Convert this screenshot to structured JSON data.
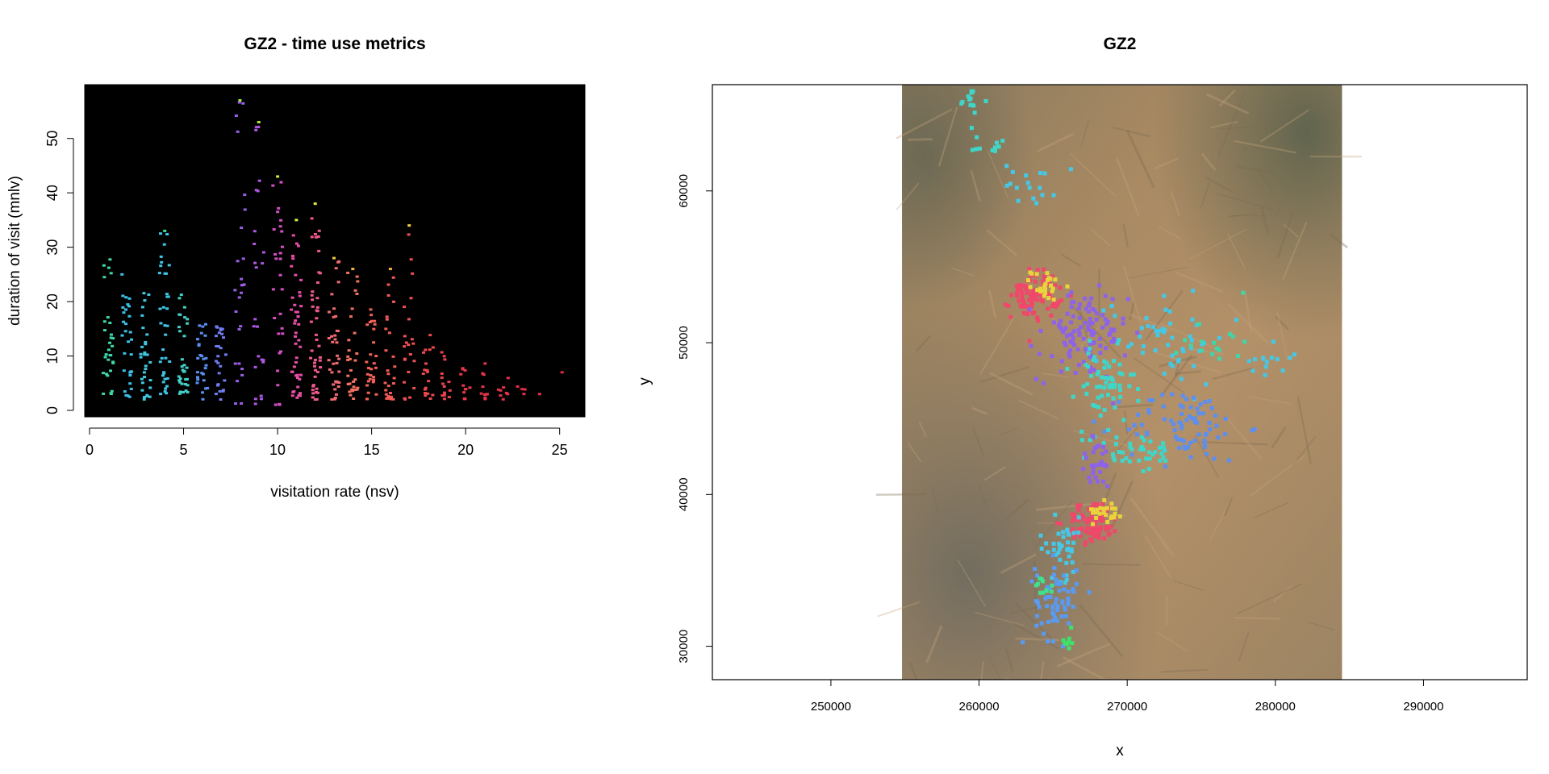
{
  "chart_data": [
    {
      "type": "scatter",
      "title": "GZ2 - time use metrics",
      "xlabel": "visitation rate (nsv)",
      "ylabel": "duration of visit (mnlv)",
      "xlim": [
        0,
        26
      ],
      "ylim": [
        0,
        59
      ],
      "x_ticks": [
        0,
        5,
        10,
        15,
        20,
        25
      ],
      "y_ticks": [
        0,
        10,
        20,
        30,
        40,
        50
      ],
      "background": "#000000",
      "grid": false,
      "legend": "none",
      "columns": [
        {
          "x": 1,
          "ymin": 3,
          "ymax": 28,
          "n": 30,
          "color": "#3fd6a9"
        },
        {
          "x": 2,
          "ymin": 2,
          "ymax": 25,
          "n": 30,
          "color": "#3cc0e8"
        },
        {
          "x": 3,
          "ymin": 2,
          "ymax": 22,
          "n": 30,
          "color": "#40c8e0"
        },
        {
          "x": 4,
          "ymin": 2,
          "ymax": 33,
          "n": 36,
          "color": "#3ec5e6"
        },
        {
          "x": 5,
          "ymin": 2,
          "ymax": 23,
          "n": 32,
          "color": "#43d0c9"
        },
        {
          "x": 6,
          "ymin": 2,
          "ymax": 17,
          "n": 26,
          "color": "#5a8ff0"
        },
        {
          "x": 7,
          "ymin": 2,
          "ymax": 16,
          "n": 26,
          "color": "#6f7df2"
        },
        {
          "x": 8,
          "ymin": 1,
          "ymax": 57,
          "n": 26,
          "color": "#9a5fe6"
        },
        {
          "x": 9,
          "ymin": 1,
          "ymax": 53,
          "n": 24,
          "color": "#b056e0"
        },
        {
          "x": 10,
          "ymin": 1,
          "ymax": 43,
          "n": 28,
          "color": "#d24fc4"
        },
        {
          "x": 11,
          "ymin": 2,
          "ymax": 35,
          "n": 44,
          "color": "#e84ea6"
        },
        {
          "x": 12,
          "ymin": 2,
          "ymax": 38,
          "n": 44,
          "color": "#ef5a8c"
        },
        {
          "x": 13,
          "ymin": 2,
          "ymax": 28,
          "n": 36,
          "color": "#f06a72"
        },
        {
          "x": 14,
          "ymin": 2,
          "ymax": 26,
          "n": 30,
          "color": "#f07060"
        },
        {
          "x": 15,
          "ymin": 2,
          "ymax": 19,
          "n": 28,
          "color": "#f06158"
        },
        {
          "x": 16,
          "ymin": 2,
          "ymax": 26,
          "n": 26,
          "color": "#f05a55"
        },
        {
          "x": 17,
          "ymin": 2,
          "ymax": 34,
          "n": 22,
          "color": "#ef4f52"
        },
        {
          "x": 18,
          "ymin": 2,
          "ymax": 15,
          "n": 18,
          "color": "#ec4850"
        },
        {
          "x": 19,
          "ymin": 2,
          "ymax": 11,
          "n": 14,
          "color": "#ea404e"
        },
        {
          "x": 20,
          "ymin": 2,
          "ymax": 8,
          "n": 12,
          "color": "#e8394c"
        },
        {
          "x": 21,
          "ymin": 2,
          "ymax": 9,
          "n": 10,
          "color": "#e6344a"
        },
        {
          "x": 22,
          "ymin": 2,
          "ymax": 6,
          "n": 8,
          "color": "#e53148"
        },
        {
          "x": 23,
          "ymin": 3,
          "ymax": 5,
          "n": 4,
          "color": "#e42e46"
        },
        {
          "x": 24,
          "ymin": 3,
          "ymax": 3,
          "n": 1,
          "color": "#e32c45"
        },
        {
          "x": 25,
          "ymin": 7,
          "ymax": 7,
          "n": 1,
          "color": "#e22a44"
        }
      ],
      "highlight_points": [
        {
          "x": 8,
          "y": 57,
          "color": "#9be23e"
        },
        {
          "x": 9,
          "y": 53,
          "color": "#b4e83c"
        },
        {
          "x": 10,
          "y": 43,
          "color": "#c8ec3a"
        },
        {
          "x": 11,
          "y": 35,
          "color": "#d9ee3a"
        },
        {
          "x": 12,
          "y": 38,
          "color": "#e6ee3a"
        },
        {
          "x": 17,
          "y": 34,
          "color": "#f2d043"
        },
        {
          "x": 16,
          "y": 26,
          "color": "#f2b040"
        },
        {
          "x": 13,
          "y": 28,
          "color": "#f2c53e"
        },
        {
          "x": 14,
          "y": 26,
          "color": "#f2b83e"
        },
        {
          "x": 4,
          "y": 33,
          "color": "#3fe08e"
        }
      ]
    },
    {
      "type": "scatter",
      "title": "GZ2",
      "xlabel": "x",
      "ylabel": "y",
      "xlim": [
        242000,
        297000
      ],
      "ylim": [
        27800,
        67000
      ],
      "x_ticks": [
        250000,
        260000,
        270000,
        280000,
        290000
      ],
      "y_ticks": [
        30000,
        40000,
        50000,
        60000
      ],
      "grid": false,
      "legend": "none",
      "raster_extent": {
        "xmin": 254800,
        "xmax": 284500,
        "ymin": 27800,
        "ymax": 67000,
        "color": "#a08664"
      },
      "clusters": [
        {
          "cx": 259500,
          "cy": 65800,
          "sx": 500,
          "sy": 600,
          "n": 14,
          "color": "#3fd6c9"
        },
        {
          "cx": 261000,
          "cy": 63000,
          "sx": 700,
          "sy": 300,
          "n": 10,
          "color": "#3fd6c9"
        },
        {
          "cx": 263500,
          "cy": 60500,
          "sx": 900,
          "sy": 700,
          "n": 18,
          "color": "#45c8e6"
        },
        {
          "cx": 263800,
          "cy": 53200,
          "sx": 800,
          "sy": 800,
          "n": 90,
          "color": "#f0476a"
        },
        {
          "cx": 264500,
          "cy": 53800,
          "sx": 500,
          "sy": 500,
          "n": 25,
          "color": "#e6d63c"
        },
        {
          "cx": 267000,
          "cy": 50500,
          "sx": 1500,
          "sy": 1500,
          "n": 110,
          "color": "#8d63ea"
        },
        {
          "cx": 268500,
          "cy": 47000,
          "sx": 1000,
          "sy": 1300,
          "n": 60,
          "color": "#3fd6c9"
        },
        {
          "cx": 272500,
          "cy": 50500,
          "sx": 2200,
          "sy": 1600,
          "n": 50,
          "color": "#45c8e6"
        },
        {
          "cx": 276000,
          "cy": 50200,
          "sx": 1100,
          "sy": 900,
          "n": 16,
          "color": "#3fd6a9"
        },
        {
          "cx": 279500,
          "cy": 49000,
          "sx": 800,
          "sy": 800,
          "n": 14,
          "color": "#45c8e6"
        },
        {
          "cx": 274000,
          "cy": 44500,
          "sx": 2000,
          "sy": 1200,
          "n": 80,
          "color": "#5c8ff0"
        },
        {
          "cx": 270500,
          "cy": 42800,
          "sx": 1500,
          "sy": 700,
          "n": 40,
          "color": "#3fd6c9"
        },
        {
          "cx": 268000,
          "cy": 42000,
          "sx": 600,
          "sy": 900,
          "n": 30,
          "color": "#8d63ea"
        },
        {
          "cx": 267700,
          "cy": 38200,
          "sx": 900,
          "sy": 700,
          "n": 90,
          "color": "#f0476a"
        },
        {
          "cx": 268700,
          "cy": 39000,
          "sx": 500,
          "sy": 400,
          "n": 25,
          "color": "#e8d33c"
        },
        {
          "cx": 265600,
          "cy": 36500,
          "sx": 800,
          "sy": 1000,
          "n": 40,
          "color": "#45c8e6"
        },
        {
          "cx": 265200,
          "cy": 33000,
          "sx": 700,
          "sy": 1300,
          "n": 60,
          "color": "#5a9af0"
        },
        {
          "cx": 264500,
          "cy": 34000,
          "sx": 400,
          "sy": 400,
          "n": 12,
          "color": "#3fe08e"
        },
        {
          "cx": 266000,
          "cy": 30200,
          "sx": 200,
          "sy": 400,
          "n": 8,
          "color": "#3fe06a"
        }
      ]
    }
  ]
}
